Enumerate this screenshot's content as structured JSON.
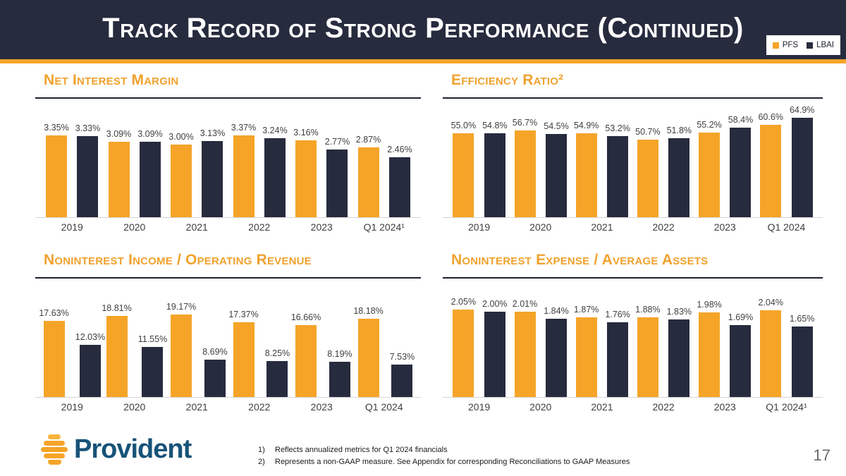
{
  "header": {
    "title": "Track Record of Strong Performance (Continued)",
    "legend": [
      {
        "label": "PFS",
        "color": "#F5A428"
      },
      {
        "label": "LBAI",
        "color": "#272B3E"
      }
    ]
  },
  "colors": {
    "pfs": "#F5A428",
    "lbai": "#272B3E",
    "header_bg": "#272B3E",
    "accent_line": "#F5A428",
    "chart_title_orange": "#F0A22E",
    "value_label_gray": "#404040",
    "logo_blue": "#175379"
  },
  "chart_data": [
    {
      "type": "bar",
      "title": "Net Interest Margin",
      "categories": [
        "2019",
        "2020",
        "2021",
        "2022",
        "2023",
        "Q1 2024¹"
      ],
      "series": [
        {
          "name": "PFS",
          "values": [
            3.35,
            3.09,
            3.0,
            3.37,
            3.16,
            2.87
          ],
          "labels": [
            "3.35%",
            "3.09%",
            "3.00%",
            "3.37%",
            "3.16%",
            "2.87%"
          ]
        },
        {
          "name": "LBAI",
          "values": [
            3.33,
            3.09,
            3.13,
            3.24,
            2.77,
            2.46
          ],
          "labels": [
            "3.33%",
            "3.09%",
            "3.13%",
            "3.24%",
            "2.77%",
            "2.46%"
          ]
        }
      ],
      "ylim": [
        0,
        4.9
      ],
      "grid": false,
      "legend_position": "slide-top-right"
    },
    {
      "type": "bar",
      "title": "Efficiency Ratio²",
      "categories": [
        "2019",
        "2020",
        "2021",
        "2022",
        "2023",
        "Q1 2024"
      ],
      "series": [
        {
          "name": "PFS",
          "values": [
            55.0,
            56.7,
            54.9,
            50.7,
            55.2,
            60.6
          ],
          "labels": [
            "55.0%",
            "56.7%",
            "54.9%",
            "50.7%",
            "55.2%",
            "60.6%"
          ]
        },
        {
          "name": "LBAI",
          "values": [
            54.8,
            54.5,
            53.2,
            51.8,
            58.4,
            64.9
          ],
          "labels": [
            "54.8%",
            "54.5%",
            "53.2%",
            "51.8%",
            "58.4%",
            "64.9%"
          ]
        }
      ],
      "ylim": [
        0,
        78
      ],
      "grid": false,
      "legend_position": "slide-top-right"
    },
    {
      "type": "bar",
      "title": "Noninterest Income / Operating Revenue",
      "categories": [
        "2019",
        "2020",
        "2021",
        "2022",
        "2023",
        "Q1 2024"
      ],
      "series": [
        {
          "name": "PFS",
          "values": [
            17.63,
            18.81,
            19.17,
            17.37,
            16.66,
            18.18
          ],
          "labels": [
            "17.63%",
            "18.81%",
            "19.17%",
            "17.37%",
            "16.66%",
            "18.18%"
          ]
        },
        {
          "name": "LBAI",
          "values": [
            12.03,
            11.55,
            8.69,
            8.25,
            8.19,
            7.53
          ],
          "labels": [
            "12.03%",
            "11.55%",
            "8.69%",
            "8.25%",
            "8.19%",
            "7.53%"
          ]
        }
      ],
      "ylim": [
        0,
        27.6
      ],
      "grid": false,
      "legend_position": "slide-top-right"
    },
    {
      "type": "bar",
      "title": "Noninterest Expense / Average Assets",
      "categories": [
        "2019",
        "2020",
        "2021",
        "2022",
        "2023",
        "Q1 2024¹"
      ],
      "series": [
        {
          "name": "PFS",
          "values": [
            2.05,
            2.01,
            1.87,
            1.88,
            1.98,
            2.04
          ],
          "labels": [
            "2.05%",
            "2.01%",
            "1.87%",
            "1.88%",
            "1.98%",
            "2.04%"
          ]
        },
        {
          "name": "LBAI",
          "values": [
            2.0,
            1.84,
            1.76,
            1.83,
            1.69,
            1.65
          ],
          "labels": [
            "2.00%",
            "1.84%",
            "1.76%",
            "1.83%",
            "1.69%",
            "1.65%"
          ]
        }
      ],
      "ylim": [
        0,
        2.8
      ],
      "grid": false,
      "legend_position": "slide-top-right"
    }
  ],
  "footnotes": [
    {
      "num": "1)",
      "text": "Reflects annualized metrics for Q1 2024 financials"
    },
    {
      "num": "2)",
      "text": "Represents a non-GAAP measure. See Appendix for corresponding Reconciliations to GAAP Measures"
    }
  ],
  "logo": {
    "text": "Provident"
  },
  "page_number": "17"
}
